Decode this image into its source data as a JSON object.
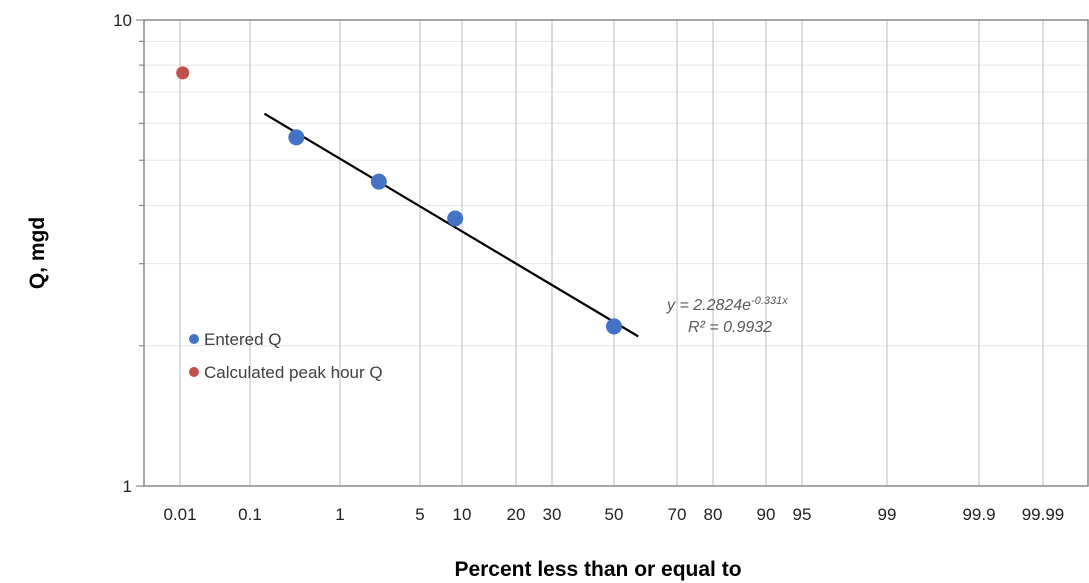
{
  "chart_data": {
    "type": "scatter",
    "title": "",
    "xlabel": "Percent less than or equal to",
    "ylabel": "Q, mgd",
    "x_scale": "normal-probability",
    "y_scale": "log",
    "ylim": [
      1,
      10
    ],
    "y_ticks": [
      "10",
      "1"
    ],
    "x_ticks": [
      {
        "label": "0.01",
        "value": 0.01
      },
      {
        "label": "0.1",
        "value": 0.1
      },
      {
        "label": "1",
        "value": 1
      },
      {
        "label": "5",
        "value": 5
      },
      {
        "label": "10",
        "value": 10
      },
      {
        "label": "20",
        "value": 20
      },
      {
        "label": "30",
        "value": 30
      },
      {
        "label": "50",
        "value": 50
      },
      {
        "label": "70",
        "value": 70
      },
      {
        "label": "80",
        "value": 80
      },
      {
        "label": "90",
        "value": 90
      },
      {
        "label": "95",
        "value": 95
      },
      {
        "label": "99",
        "value": 99
      },
      {
        "label": "99.9",
        "value": 99.9
      },
      {
        "label": "99.99",
        "value": 99.99
      }
    ],
    "series": [
      {
        "name": "Entered Q",
        "color": "#4472C4",
        "points": [
          {
            "x": 0.35,
            "y": 5.6
          },
          {
            "x": 2.3,
            "y": 4.5
          },
          {
            "x": 9,
            "y": 3.75
          },
          {
            "x": 50,
            "y": 2.2
          }
        ]
      },
      {
        "name": "Calculated peak hour Q",
        "color": "#C0504D",
        "points": [
          {
            "x": 0.011,
            "y": 7.7
          }
        ]
      }
    ],
    "trendline": {
      "equation": "y = 2.2824e",
      "exponent": "-0.331x",
      "r_squared": "R² = 0.9932",
      "x_start": 0.15,
      "x_end": 58
    },
    "grid": true,
    "legend_position": "left"
  }
}
